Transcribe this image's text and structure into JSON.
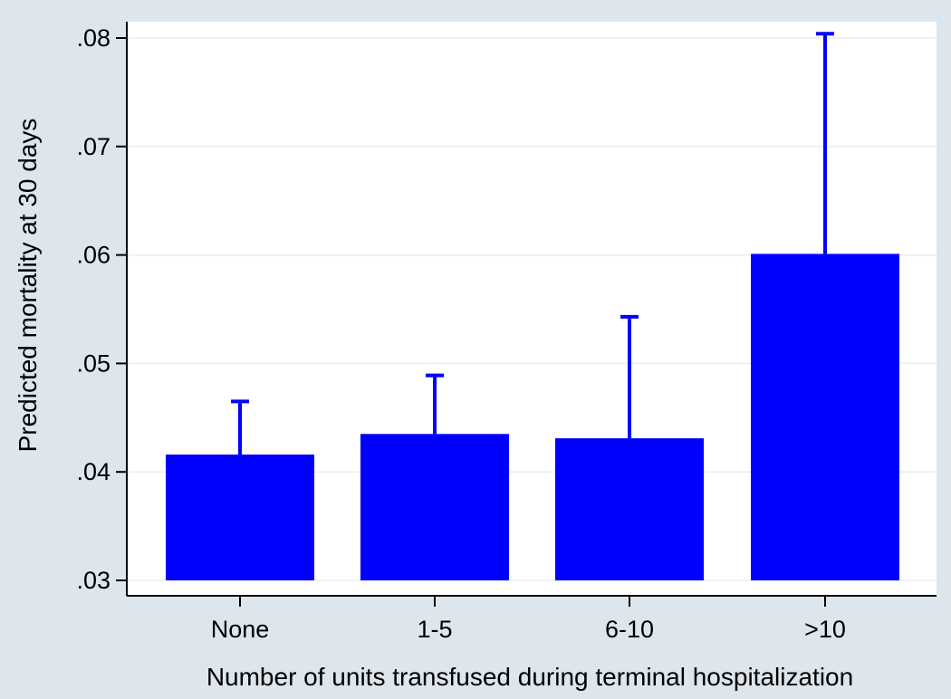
{
  "chart_data": {
    "type": "bar",
    "categories": [
      "None",
      "1-5",
      "6-10",
      ">10"
    ],
    "values": [
      0.0416,
      0.0435,
      0.0431,
      0.0601
    ],
    "error_upper": [
      0.0465,
      0.0489,
      0.0543,
      0.0804
    ],
    "xlabel": "Number of units transfused during terminal hospitalization",
    "ylabel": "Predicted mortality at 30 days",
    "ylim": [
      0.03,
      0.08
    ],
    "yticks": [
      0.03,
      0.04,
      0.05,
      0.06,
      0.07,
      0.08
    ],
    "ytick_labels": [
      ".03",
      ".04",
      ".05",
      ".06",
      ".07",
      ".08"
    ],
    "grid": true,
    "bar_color": "#0000ff",
    "plot_background": "#ffffff",
    "background": "#dde6ed"
  }
}
